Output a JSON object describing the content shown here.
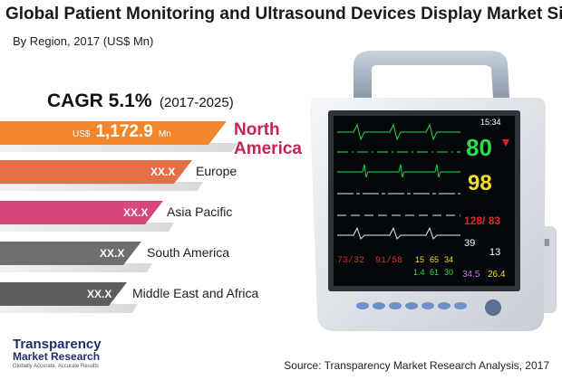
{
  "chart_data": {
    "type": "bar",
    "title": "Global Patient Monitoring and Ultrasound Devices Display Market Size",
    "subtitle": "By Region, 2017 (US$ Mn)",
    "cagr": {
      "label": "CAGR 5.1%",
      "period": "(2017-2025)"
    },
    "categories": [
      "North America",
      "Europe",
      "Asia Pacific",
      "South America",
      "Middle East and Africa"
    ],
    "values": [
      1172.9,
      null,
      null,
      null,
      null
    ],
    "value_labels": [
      "1,172.9",
      "XX.X",
      "XX.X",
      "XX.X",
      "XX.X"
    ],
    "currency_label": "US$",
    "unit_label": "Mn",
    "highlight_region": {
      "line1": "North",
      "line2": "America"
    },
    "colors": [
      "#f3862d",
      "#e26f46",
      "#d8467c",
      "#6e6e6e",
      "#5e5e5e"
    ]
  },
  "monitor_screen": {
    "time": "15:34",
    "hr": "80",
    "spo2": "98",
    "nibp": "128/ 83",
    "resp1": "39",
    "resp2": "13",
    "temp1": "34.5",
    "temp2": "26.4",
    "param_left": "73/32",
    "param_mid": "91/58",
    "nums_row1": [
      "15",
      "65",
      "34"
    ],
    "nums_row2": [
      "1.4",
      "61",
      "30"
    ]
  },
  "logo": {
    "line1": "Transparency",
    "line2": "Market Research",
    "tagline": "Globally Accurate, Accurate Results"
  },
  "source": "Source: Transparency Market Research Analysis, 2017",
  "brand_colors": {
    "logo_blue": "#1f2f6b",
    "logo_orange": "#f08a24",
    "highlight": "#c4254e"
  }
}
